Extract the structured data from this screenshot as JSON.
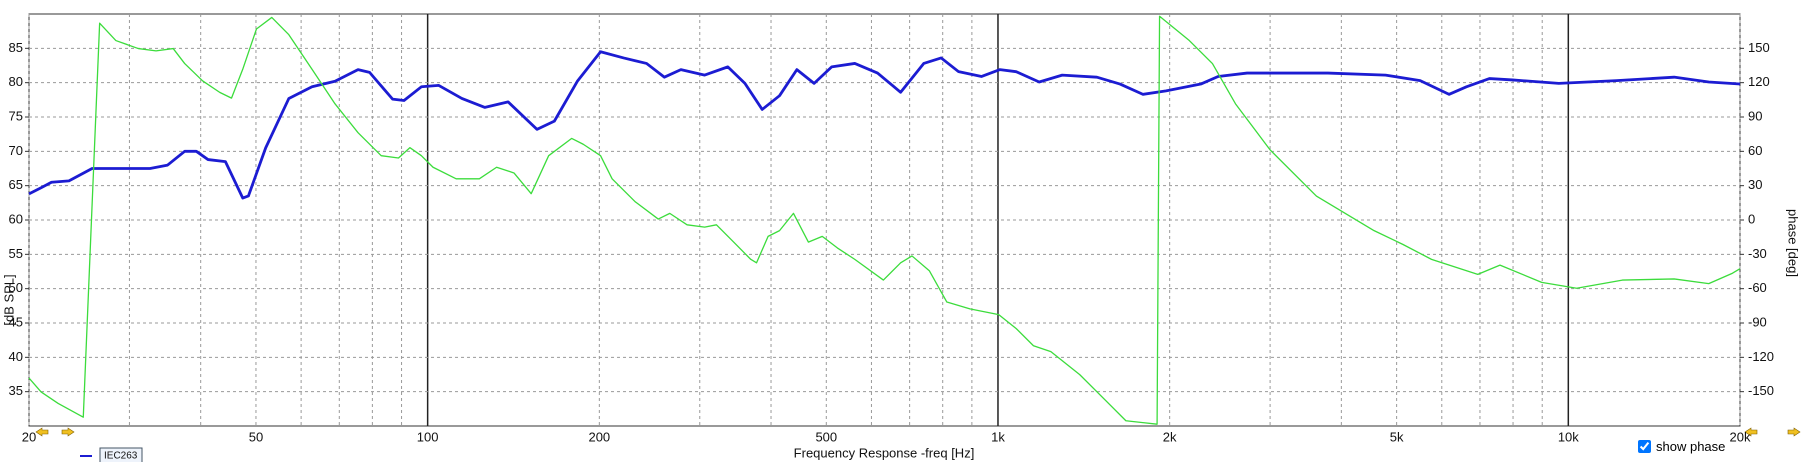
{
  "chart_data": {
    "type": "line",
    "xlabel": "Frequency Response -freq [Hz]",
    "ylabel": "[dB SPL]",
    "y2label": "phase [deg]",
    "xscale": "log",
    "xlim": [
      20,
      20000
    ],
    "xticks": [
      20,
      50,
      100,
      200,
      500,
      {
        "value": 1000,
        "label": "1k"
      },
      {
        "value": 2000,
        "label": "2k"
      },
      {
        "value": 5000,
        "label": "5k"
      },
      {
        "value": 10000,
        "label": "10k"
      },
      {
        "value": 20000,
        "label": "20k"
      }
    ],
    "xgrid": [
      30,
      40,
      60,
      70,
      80,
      90,
      300,
      400,
      600,
      700,
      800,
      900,
      3000,
      4000,
      6000,
      7000,
      8000,
      9000
    ],
    "ylim": [
      30,
      90
    ],
    "yticks": [
      35,
      40,
      45,
      50,
      55,
      60,
      65,
      70,
      75,
      80,
      85
    ],
    "y2lim": [
      -180,
      180
    ],
    "y2ticks": [
      -150,
      -120,
      -90,
      -60,
      -30,
      0,
      30,
      60,
      90,
      120,
      150
    ],
    "grid": true,
    "series": [
      {
        "name": "IEC263",
        "color": "#1c1cd2",
        "x": [
          20,
          21,
          21.9,
          23.5,
          25.8,
          28.4,
          32.6,
          35,
          37.5,
          39.3,
          41.2,
          44.2,
          47.4,
          48.5,
          52,
          57.1,
          62.7,
          68.8,
          75.5,
          79.1,
          86.8,
          90.9,
          97.5,
          104.6,
          114.8,
          126,
          138.4,
          155.5,
          166.8,
          183,
          201,
          220.6,
          242,
          260,
          278,
          306,
          336,
          360,
          386,
          414,
          444,
          476,
          511,
          561,
          615,
          675,
          741,
          795,
          853,
          936,
          1008,
          1076,
          1181,
          1296,
          1491,
          1637,
          1796,
          1971,
          2268,
          2432,
          2734,
          3001,
          3293,
          3788,
          4781,
          5499,
          6181,
          6627,
          7273,
          7981,
          9624,
          12150,
          15330,
          17630,
          20000
        ],
        "values": [
          63.8,
          64.7,
          65.5,
          65.7,
          67.5,
          67.5,
          67.5,
          68,
          70,
          70,
          68.8,
          68.5,
          63.2,
          63.5,
          70.5,
          77.7,
          79.4,
          80.2,
          81.9,
          81.5,
          77.6,
          77.4,
          79.4,
          79.6,
          77.7,
          76.4,
          77.2,
          73.2,
          74.4,
          80.2,
          84.5,
          83.6,
          82.8,
          80.8,
          81.9,
          81.1,
          82.3,
          79.9,
          76.1,
          78.1,
          81.9,
          79.9,
          82.3,
          82.8,
          81.4,
          78.6,
          82.8,
          83.6,
          81.6,
          80.9,
          81.9,
          81.6,
          80.1,
          81.1,
          80.8,
          79.8,
          78.3,
          78.8,
          79.8,
          80.9,
          81.4,
          81.4,
          81.4,
          81.4,
          81.1,
          80.3,
          78.3,
          79.4,
          80.6,
          80.4,
          79.9,
          80.3,
          80.8,
          80.1,
          79.8
        ]
      },
      {
        "color": "#3cdc3c",
        "axis": "y2",
        "x": [
          20,
          21,
          22.5,
          24.9,
          26.6,
          28.4,
          31.1,
          33.4,
          35.8,
          37.5,
          40.3,
          43.2,
          45.3,
          47.4,
          50.1,
          53.3,
          57.1,
          62.7,
          68.8,
          75.5,
          82.9,
          88.9,
          93.1,
          97.5,
          102.2,
          112.2,
          123.2,
          132.1,
          141.7,
          151.9,
          163,
          178.9,
          187.4,
          201,
          210.6,
          231.2,
          253.7,
          265.8,
          285,
          306,
          320.9,
          344,
          368.6,
          377.3,
          395.3,
          414,
          437.9,
          465.1,
          491.9,
          522.8,
          561,
          629.6,
          675,
          706.7,
          758.3,
          813.5,
          892.9,
          1003,
          1076,
          1154,
          1238,
          1391,
          1563,
          1676,
          1901,
          1920,
          2165,
          2377,
          2609,
          3001,
          3616,
          4565,
          5126,
          5757,
          6938,
          7589,
          8980,
          10340,
          12440,
          15330,
          17630,
          19400,
          20000
        ],
        "values": [
          -138.1,
          -150.2,
          -160.3,
          -172.3,
          172,
          156.8,
          149.8,
          147.8,
          149.8,
          136.7,
          121.6,
          111.5,
          106.5,
          131.7,
          166.9,
          177,
          161.9,
          131.7,
          101.5,
          76.3,
          56.2,
          54.2,
          63.2,
          56.2,
          46.1,
          36,
          36,
          46.1,
          41.1,
          23,
          56.2,
          71.3,
          66.2,
          56.2,
          36,
          15.9,
          0.8,
          5.8,
          -4.2,
          -6.2,
          -4.2,
          -19.3,
          -34.4,
          -37.4,
          -14.3,
          -9.3,
          5.8,
          -19.3,
          -14.3,
          -24.4,
          -34.4,
          -52.5,
          -37.4,
          -31.4,
          -44.5,
          -71.7,
          -77.7,
          -82.7,
          -94.8,
          -109.9,
          -115,
          -135.1,
          -160.3,
          -175.4,
          -178.4,
          178,
          156.8,
          136.7,
          101.5,
          61.2,
          20.9,
          -9.3,
          -21.3,
          -34.4,
          -47.5,
          -39.4,
          -54.5,
          -59.6,
          -52.5,
          -51.5,
          -55.6,
          -46.5,
          -42.5
        ]
      }
    ]
  },
  "controls": {
    "show_phase": {
      "label": "show phase",
      "checked": true
    }
  }
}
